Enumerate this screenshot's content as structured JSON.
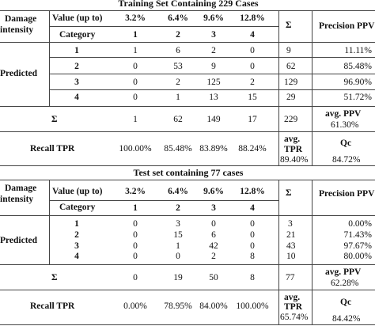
{
  "training": {
    "title": "Training Set Containing 229 Cases",
    "damage_label_1": "Damage",
    "damage_label_2": "intensity",
    "value_label": "Value (up to)",
    "category_label": "Category",
    "values": [
      "3.2%",
      "6.4%",
      "9.6%",
      "12.8%"
    ],
    "categories": [
      "1",
      "2",
      "3",
      "4"
    ],
    "sigma": "Σ",
    "precision_header": "Precision PPV",
    "predicted_label": "Predicted",
    "rows": [
      {
        "cat": "1",
        "cells": [
          "1",
          "6",
          "2",
          "0"
        ],
        "sum": "9",
        "ppv": "11.11%"
      },
      {
        "cat": "2",
        "cells": [
          "0",
          "53",
          "9",
          "0"
        ],
        "sum": "62",
        "ppv": "85.48%"
      },
      {
        "cat": "3",
        "cells": [
          "0",
          "2",
          "125",
          "2"
        ],
        "sum": "129",
        "ppv": "96.90%"
      },
      {
        "cat": "4",
        "cells": [
          "0",
          "1",
          "13",
          "15"
        ],
        "sum": "29",
        "ppv": "51.72%"
      }
    ],
    "sum_row": {
      "label": "Σ",
      "cells": [
        "1",
        "62",
        "149",
        "17"
      ],
      "total": "229",
      "avg_ppv_label": "avg. PPV",
      "avg_ppv": "61.30%"
    },
    "recall_row": {
      "label": "Recall TPR",
      "cells": [
        "100.00%",
        "85.48%",
        "83.89%",
        "88.24%"
      ],
      "avg_tpr_label_1": "avg.",
      "avg_tpr_label_2": "TPR",
      "avg_tpr": "89.40%",
      "qc_label": "Qc",
      "qc": "84.72%"
    }
  },
  "test": {
    "title": "Test set containing 77 cases",
    "damage_label_1": "Damage",
    "damage_label_2": "intensity",
    "value_label": "Value (up to)",
    "category_label": "Category",
    "values": [
      "3.2%",
      "6.4%",
      "9.6%",
      "12.8%"
    ],
    "categories": [
      "1",
      "2",
      "3",
      "4"
    ],
    "sigma": "Σ",
    "precision_header": "Precision PPV",
    "predicted_label": "Predicted",
    "rows": [
      {
        "cat": "1",
        "cells": [
          "0",
          "3",
          "0",
          "0"
        ],
        "sum": "3",
        "ppv": "0.00%"
      },
      {
        "cat": "2",
        "cells": [
          "0",
          "15",
          "6",
          "0"
        ],
        "sum": "21",
        "ppv": "71.43%"
      },
      {
        "cat": "3",
        "cells": [
          "0",
          "1",
          "42",
          "0"
        ],
        "sum": "43",
        "ppv": "97.67%"
      },
      {
        "cat": "4",
        "cells": [
          "0",
          "0",
          "2",
          "8"
        ],
        "sum": "10",
        "ppv": "80.00%"
      }
    ],
    "sum_row": {
      "label": "Σ",
      "cells": [
        "0",
        "19",
        "50",
        "8"
      ],
      "total": "77",
      "avg_ppv_label": "avg. PPV",
      "avg_ppv": "62.28%"
    },
    "recall_row": {
      "label": "Recall TPR",
      "cells": [
        "0.00%",
        "78.95%",
        "84.00%",
        "100.00%"
      ],
      "avg_tpr_label_1": "avg.",
      "avg_tpr_label_2": "TPR",
      "avg_tpr": "65.74%",
      "qc_label": "Qc",
      "qc": "84.42%"
    }
  }
}
